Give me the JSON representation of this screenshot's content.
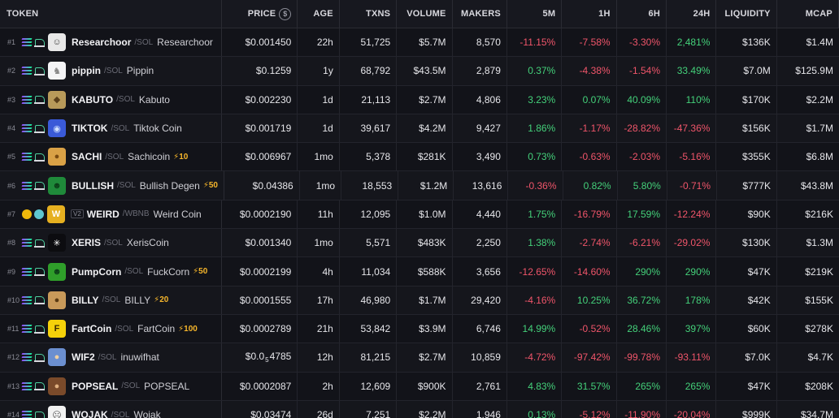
{
  "headers": {
    "token": "TOKEN",
    "price": "PRICE",
    "price_icon": "$",
    "age": "AGE",
    "txns": "TXNS",
    "volume": "VOLUME",
    "makers": "MAKERS",
    "m5": "5M",
    "h1": "1H",
    "h6": "6H",
    "h24": "24H",
    "liquidity": "LIQUIDITY",
    "mcap": "MCAP"
  },
  "colors": {
    "positive": "#44d17a",
    "negative": "#f0556a",
    "boost": "#f5b52b"
  },
  "rows": [
    {
      "rank": "#1",
      "chain": "solana-icon",
      "dex": "raydium-icon",
      "avatar_icon": "sketch-face-icon",
      "avatar_bg": "#e8e8e8",
      "symbol": "Researchoor",
      "quote": "/SOL",
      "name": "Researchoor",
      "boost": "",
      "v2": "",
      "price": "$0.001450",
      "age": "22h",
      "txns": "51,725",
      "volume": "$5.7M",
      "makers": "8,570",
      "m5": "-11.15%",
      "h1": "-7.58%",
      "h6": "-3.30%",
      "h24": "2,481%",
      "m5_dir": "neg",
      "h1_dir": "neg",
      "h6_dir": "neg",
      "h24_dir": "pos",
      "liquidity": "$136K",
      "mcap": "$1.4M"
    },
    {
      "rank": "#2",
      "chain": "solana-icon",
      "dex": "pump-icon",
      "avatar_icon": "unicorn-icon",
      "avatar_bg": "#f4f4f6",
      "symbol": "pippin",
      "quote": "/SOL",
      "name": "Pippin",
      "boost": "",
      "v2": "",
      "price": "$0.1259",
      "age": "1y",
      "txns": "68,792",
      "volume": "$43.5M",
      "makers": "2,879",
      "m5": "0.37%",
      "h1": "-4.38%",
      "h6": "-1.54%",
      "h24": "33.49%",
      "m5_dir": "pos",
      "h1_dir": "neg",
      "h6_dir": "neg",
      "h24_dir": "pos",
      "liquidity": "$7.0M",
      "mcap": "$125.9M"
    },
    {
      "rank": "#3",
      "chain": "solana-icon",
      "dex": "raydium-icon",
      "avatar_icon": "kabuto-icon",
      "avatar_bg": "#b89a5a",
      "symbol": "KABUTO",
      "quote": "/SOL",
      "name": "Kabuto",
      "boost": "",
      "v2": "",
      "price": "$0.002230",
      "age": "1d",
      "txns": "21,113",
      "volume": "$2.7M",
      "makers": "4,806",
      "m5": "3.23%",
      "h1": "0.07%",
      "h6": "40.09%",
      "h24": "110%",
      "m5_dir": "pos",
      "h1_dir": "pos",
      "h6_dir": "pos",
      "h24_dir": "pos",
      "liquidity": "$170K",
      "mcap": "$2.2M"
    },
    {
      "rank": "#4",
      "chain": "solana-icon",
      "dex": "raydium-icon",
      "avatar_icon": "globe-icon",
      "avatar_bg": "#3a5ad8",
      "symbol": "TIKTOK",
      "quote": "/SOL",
      "name": "Tiktok Coin",
      "boost": "",
      "v2": "",
      "price": "$0.001719",
      "age": "1d",
      "txns": "39,617",
      "volume": "$4.2M",
      "makers": "9,427",
      "m5": "1.86%",
      "h1": "-1.17%",
      "h6": "-28.82%",
      "h24": "-47.36%",
      "m5_dir": "pos",
      "h1_dir": "neg",
      "h6_dir": "neg",
      "h24_dir": "neg",
      "liquidity": "$156K",
      "mcap": "$1.7M"
    },
    {
      "rank": "#5",
      "chain": "solana-icon",
      "dex": "raydium-icon",
      "avatar_icon": "cat-icon",
      "avatar_bg": "#d9a146",
      "symbol": "SACHI",
      "quote": "/SOL",
      "name": "Sachicoin",
      "boost": "⚡10",
      "v2": "",
      "price": "$0.006967",
      "age": "1mo",
      "txns": "5,378",
      "volume": "$281K",
      "makers": "3,490",
      "m5": "0.73%",
      "h1": "-0.63%",
      "h6": "-2.03%",
      "h24": "-5.16%",
      "m5_dir": "pos",
      "h1_dir": "neg",
      "h6_dir": "neg",
      "h24_dir": "neg",
      "liquidity": "$355K",
      "mcap": "$6.8M"
    },
    {
      "rank": "#6",
      "chain": "solana-icon",
      "dex": "raydium-icon",
      "avatar_icon": "pepe-icon",
      "avatar_bg": "#1f8a3a",
      "symbol": "BULLISH",
      "quote": "/SOL",
      "name": "Bullish Degen",
      "boost": "⚡50",
      "v2": "",
      "price": "$0.04386",
      "age": "1mo",
      "txns": "18,553",
      "volume": "$1.2M",
      "makers": "13,616",
      "m5": "-0.36%",
      "h1": "0.82%",
      "h6": "5.80%",
      "h24": "-0.71%",
      "m5_dir": "neg",
      "h1_dir": "pos",
      "h6_dir": "pos",
      "h24_dir": "neg",
      "liquidity": "$777K",
      "mcap": "$43.8M"
    },
    {
      "rank": "#7",
      "chain": "bnb-icon",
      "dex": "pancakeswap-icon",
      "avatar_icon": "weird-w-icon",
      "avatar_bg": "#e6b020",
      "symbol": "WEIRD",
      "quote": "/WBNB",
      "name": "Weird Coin",
      "boost": "",
      "v2": "V2",
      "price": "$0.0002190",
      "age": "11h",
      "txns": "12,095",
      "volume": "$1.0M",
      "makers": "4,440",
      "m5": "1.75%",
      "h1": "-16.79%",
      "h6": "17.59%",
      "h24": "-12.24%",
      "m5_dir": "pos",
      "h1_dir": "neg",
      "h6_dir": "pos",
      "h24_dir": "neg",
      "liquidity": "$90K",
      "mcap": "$216K"
    },
    {
      "rank": "#8",
      "chain": "solana-icon",
      "dex": "raydium-icon",
      "avatar_icon": "x-star-icon",
      "avatar_bg": "#0c0c10",
      "symbol": "XERIS",
      "quote": "/SOL",
      "name": "XerisCoin",
      "boost": "",
      "v2": "",
      "price": "$0.001340",
      "age": "1mo",
      "txns": "5,571",
      "volume": "$483K",
      "makers": "2,250",
      "m5": "1.38%",
      "h1": "-2.74%",
      "h6": "-6.21%",
      "h24": "-29.02%",
      "m5_dir": "pos",
      "h1_dir": "neg",
      "h6_dir": "neg",
      "h24_dir": "neg",
      "liquidity": "$130K",
      "mcap": "$1.3M"
    },
    {
      "rank": "#9",
      "chain": "solana-icon",
      "dex": "raydium-icon",
      "avatar_icon": "green-frog-icon",
      "avatar_bg": "#2f9e2a",
      "symbol": "PumpCorn",
      "quote": "/SOL",
      "name": "FuckCorn",
      "boost": "⚡50",
      "v2": "",
      "price": "$0.0002199",
      "age": "4h",
      "txns": "11,034",
      "volume": "$588K",
      "makers": "3,656",
      "m5": "-12.65%",
      "h1": "-14.60%",
      "h6": "290%",
      "h24": "290%",
      "m5_dir": "neg",
      "h1_dir": "neg",
      "h6_dir": "pos",
      "h24_dir": "pos",
      "liquidity": "$47K",
      "mcap": "$219K"
    },
    {
      "rank": "#10",
      "chain": "solana-icon",
      "dex": "raydium-icon",
      "avatar_icon": "dog-icon",
      "avatar_bg": "#c99a5a",
      "symbol": "BILLY",
      "quote": "/SOL",
      "name": "BILLY",
      "boost": "⚡20",
      "v2": "",
      "price": "$0.0001555",
      "age": "17h",
      "txns": "46,980",
      "volume": "$1.7M",
      "makers": "29,420",
      "m5": "-4.16%",
      "h1": "10.25%",
      "h6": "36.72%",
      "h24": "178%",
      "m5_dir": "neg",
      "h1_dir": "pos",
      "h6_dir": "pos",
      "h24_dir": "pos",
      "liquidity": "$42K",
      "mcap": "$155K"
    },
    {
      "rank": "#11",
      "chain": "solana-icon",
      "dex": "raydium-icon",
      "avatar_icon": "fartcoin-icon",
      "avatar_bg": "#f5d10a",
      "symbol": "FartCoin",
      "quote": "/SOL",
      "name": "FartCoin",
      "boost": "⚡100",
      "v2": "",
      "price": "$0.0002789",
      "age": "21h",
      "txns": "53,842",
      "volume": "$3.9M",
      "makers": "6,746",
      "m5": "14.99%",
      "h1": "-0.52%",
      "h6": "28.46%",
      "h24": "397%",
      "m5_dir": "pos",
      "h1_dir": "neg",
      "h6_dir": "pos",
      "h24_dir": "pos",
      "liquidity": "$60K",
      "mcap": "$278K"
    },
    {
      "rank": "#12",
      "chain": "solana-icon",
      "dex": "raydium-icon",
      "avatar_icon": "dog-hat-icon",
      "avatar_bg": "#6b8fd0",
      "symbol": "WIF2",
      "quote": "/SOL",
      "name": "inuwifhat",
      "boost": "",
      "v2": "",
      "price_prefix": "$0.0",
      "price_sub": "5",
      "price_suffix": "4785",
      "price": "",
      "age": "12h",
      "txns": "81,215",
      "volume": "$2.7M",
      "makers": "10,859",
      "m5": "-4.72%",
      "h1": "-97.42%",
      "h6": "-99.78%",
      "h24": "-93.11%",
      "m5_dir": "neg",
      "h1_dir": "neg",
      "h6_dir": "neg",
      "h24_dir": "neg",
      "liquidity": "$7.0K",
      "mcap": "$4.7K"
    },
    {
      "rank": "#13",
      "chain": "solana-icon",
      "dex": "raydium-icon",
      "avatar_icon": "seal-icon",
      "avatar_bg": "#7a4a2a",
      "symbol": "POPSEAL",
      "quote": "/SOL",
      "name": "POPSEAL",
      "boost": "",
      "v2": "",
      "price": "$0.0002087",
      "age": "2h",
      "txns": "12,609",
      "volume": "$900K",
      "makers": "2,761",
      "m5": "4.83%",
      "h1": "31.57%",
      "h6": "265%",
      "h24": "265%",
      "m5_dir": "pos",
      "h1_dir": "pos",
      "h6_dir": "pos",
      "h24_dir": "pos",
      "liquidity": "$47K",
      "mcap": "$208K"
    },
    {
      "rank": "#14",
      "chain": "solana-icon",
      "dex": "raydium-icon",
      "avatar_icon": "wojak-icon",
      "avatar_bg": "#f2f2f2",
      "symbol": "WOJAK",
      "quote": "/SOL",
      "name": "Wojak",
      "boost": "",
      "v2": "",
      "price": "$0.03474",
      "age": "26d",
      "txns": "7,251",
      "volume": "$2.2M",
      "makers": "1,946",
      "m5": "0.13%",
      "h1": "-5.12%",
      "h6": "-11.90%",
      "h24": "-20.04%",
      "m5_dir": "pos",
      "h1_dir": "neg",
      "h6_dir": "neg",
      "h24_dir": "neg",
      "liquidity": "$999K",
      "mcap": "$34.7M"
    }
  ]
}
